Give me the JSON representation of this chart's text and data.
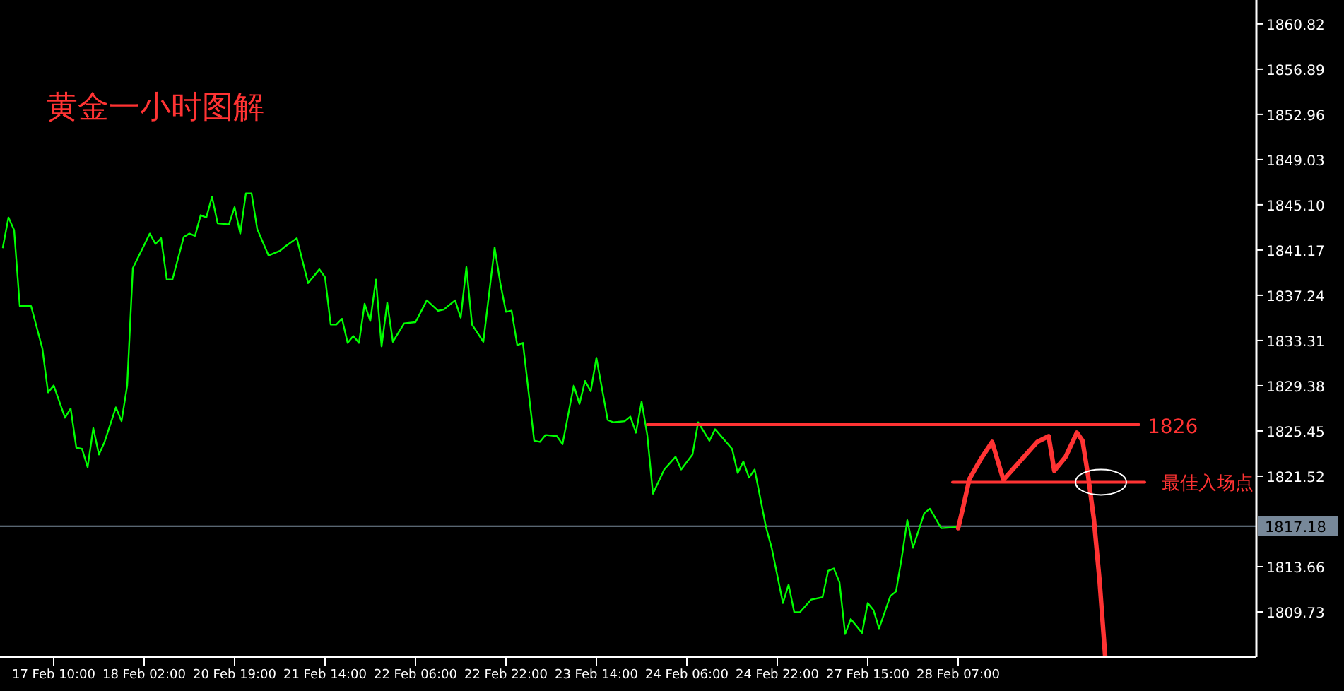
{
  "chart_data": {
    "type": "line",
    "title": "黄金一小时图解",
    "categories": [
      null,
      null,
      null,
      null,
      null,
      null,
      null,
      null,
      null,
      "17 Feb 10:00",
      null,
      null,
      null,
      null,
      null,
      null,
      null,
      null,
      null,
      null,
      null,
      null,
      null,
      null,
      null,
      "18 Feb 02:00",
      null,
      null,
      null,
      null,
      null,
      null,
      null,
      null,
      null,
      null,
      null,
      null,
      null,
      null,
      null,
      "20 Feb 19:00",
      null,
      null,
      null,
      null,
      null,
      null,
      null,
      null,
      null,
      null,
      null,
      null,
      null,
      null,
      null,
      "21 Feb 14:00",
      null,
      null,
      null,
      null,
      null,
      null,
      null,
      null,
      null,
      null,
      null,
      null,
      null,
      null,
      null,
      "22 Feb 06:00",
      null,
      null,
      null,
      null,
      null,
      null,
      null,
      null,
      null,
      null,
      null,
      null,
      null,
      null,
      null,
      "22 Feb 22:00",
      null,
      null,
      null,
      null,
      null,
      null,
      null,
      null,
      null,
      null,
      null,
      null,
      null,
      null,
      null,
      "23 Feb 14:00",
      null,
      null,
      null,
      null,
      null,
      null,
      null,
      null,
      null,
      null,
      null,
      null,
      null,
      null,
      null,
      "24 Feb 06:00",
      null,
      null,
      null,
      null,
      null,
      null,
      null,
      null,
      null,
      null,
      null,
      null,
      null,
      null,
      null,
      "24 Feb 22:00",
      null,
      null,
      null,
      null,
      null,
      null,
      null,
      null,
      null,
      null,
      null,
      null,
      null,
      null,
      null,
      "27 Feb 15:00",
      null,
      null,
      null,
      null,
      null,
      null,
      null,
      null,
      null,
      null,
      null,
      null,
      null,
      null,
      null,
      "28 Feb 07:00",
      null,
      null,
      null,
      null,
      null,
      null,
      null,
      null,
      null,
      null,
      null,
      null,
      null,
      null,
      null,
      null,
      null,
      null,
      null,
      null,
      null,
      null,
      null,
      null,
      null,
      null,
      null,
      null,
      null,
      null,
      null,
      null,
      null,
      null,
      null,
      null,
      null,
      null,
      null,
      null,
      null,
      null,
      null,
      null,
      null,
      null,
      null,
      null,
      null,
      null,
      null,
      null
    ],
    "ylim": [
      1805.8,
      1862.9
    ],
    "yticks": [
      {
        "value": 1860.82,
        "label": "1860.82"
      },
      {
        "value": 1856.89,
        "label": "1856.89"
      },
      {
        "value": 1852.96,
        "label": "1852.96"
      },
      {
        "value": 1849.03,
        "label": "1849.03"
      },
      {
        "value": 1845.1,
        "label": "1845.10"
      },
      {
        "value": 1841.17,
        "label": "1841.17"
      },
      {
        "value": 1837.24,
        "label": "1837.24"
      },
      {
        "value": 1833.31,
        "label": "1833.31"
      },
      {
        "value": 1829.38,
        "label": "1829.38"
      },
      {
        "value": 1825.45,
        "label": "1825.45"
      },
      {
        "value": 1821.52,
        "label": "1821.52"
      },
      {
        "value": 1813.66,
        "label": "1813.66"
      },
      {
        "value": 1809.73,
        "label": "1809.73"
      }
    ],
    "grid": false,
    "series": [
      {
        "color": "#00ff00",
        "values": [
          1841.4,
          1844.0,
          1842.9,
          1836.3,
          null,
          1836.3,
          null,
          1832.6,
          1828.8,
          1829.4,
          null,
          1826.6,
          1827.4,
          1824.0,
          1823.9,
          1822.3,
          1825.7,
          1823.4,
          1824.5,
          null,
          1827.5,
          1826.3,
          1829.4,
          1839.6,
          null,
          null,
          1842.6,
          1841.7,
          1842.2,
          1838.6,
          1838.6,
          null,
          1842.3,
          1842.6,
          1842.4,
          1844.2,
          1844.0,
          1845.8,
          1843.5,
          null,
          1843.4,
          1844.9,
          1842.6,
          1846.1,
          1846.1,
          1843.0,
          null,
          1840.7,
          null,
          1841.1,
          1841.5,
          null,
          1842.2,
          null,
          1838.3,
          null,
          1839.5,
          1838.8,
          1834.7,
          1834.7,
          1835.2,
          1833.1,
          1833.7,
          1833.1,
          1836.5,
          1835.0,
          1838.6,
          1832.8,
          1836.6,
          1833.2,
          null,
          1834.8,
          null,
          1834.9,
          null,
          1836.8,
          null,
          1835.9,
          1836.0,
          null,
          1836.8,
          1835.3,
          1839.7,
          1834.7,
          null,
          1833.2,
          null,
          1841.4,
          1838.3,
          1835.8,
          1835.9,
          1832.9,
          1833.1,
          null,
          1824.6,
          1824.5,
          1825.1,
          null,
          1825.0,
          1824.3,
          null,
          1829.4,
          1827.8,
          1829.8,
          1828.9,
          1831.8,
          null,
          1826.4,
          1826.2,
          null,
          1826.3,
          1826.7,
          1825.3,
          1828.0,
          1825.1,
          1820.0,
          null,
          1822.1,
          null,
          1823.2,
          1822.1,
          null,
          1823.4,
          1826.2,
          null,
          1824.6,
          1825.6,
          null,
          null,
          1823.9,
          1821.8,
          1822.8,
          1821.4,
          1822.1,
          null,
          1817.1,
          1815.3,
          null,
          1810.5,
          1812.1,
          1809.7,
          1809.7,
          null,
          1810.8,
          null,
          1811.0,
          1813.3,
          1813.5,
          1812.3,
          1807.8,
          1809.1,
          null,
          1807.9,
          1810.5,
          1809.9,
          1808.3,
          null,
          1811.1,
          1811.5,
          1814.4,
          1817.7,
          1815.3,
          null,
          1818.3,
          1818.7,
          null,
          1817.0,
          null,
          null,
          1817.1,
          null,
          null,
          null,
          null,
          null,
          null,
          null,
          null,
          null,
          null,
          null,
          null,
          null,
          null,
          null,
          null,
          null,
          null,
          null,
          null,
          null,
          null,
          null,
          null,
          null,
          null,
          null,
          null,
          null,
          null,
          null,
          null,
          null,
          null,
          null,
          null,
          null,
          null,
          null,
          null,
          null,
          null,
          null,
          null,
          null,
          null,
          null,
          null,
          null,
          null,
          null,
          null
        ]
      },
      {
        "color": "#ff3333",
        "values": [
          null,
          null,
          null,
          null,
          null,
          null,
          null,
          null,
          null,
          null,
          null,
          null,
          null,
          null,
          null,
          null,
          null,
          null,
          null,
          null,
          null,
          null,
          null,
          null,
          null,
          null,
          null,
          null,
          null,
          null,
          null,
          null,
          null,
          null,
          null,
          null,
          null,
          null,
          null,
          null,
          null,
          null,
          null,
          null,
          null,
          null,
          null,
          null,
          null,
          null,
          null,
          null,
          null,
          null,
          null,
          null,
          null,
          null,
          null,
          null,
          null,
          null,
          null,
          null,
          null,
          null,
          null,
          null,
          null,
          null,
          null,
          null,
          null,
          null,
          null,
          null,
          null,
          null,
          null,
          null,
          null,
          null,
          null,
          null,
          null,
          null,
          null,
          null,
          null,
          null,
          null,
          null,
          null,
          null,
          null,
          null,
          null,
          null,
          null,
          null,
          null,
          null,
          null,
          null,
          null,
          null,
          null,
          null,
          null,
          null,
          null,
          null,
          null,
          null,
          null,
          null,
          null,
          null,
          null,
          null,
          null,
          null,
          null,
          null,
          null,
          null,
          null,
          null,
          null,
          null,
          null,
          null,
          null,
          null,
          null,
          null,
          null,
          null,
          null,
          null,
          null,
          null,
          null,
          null,
          null,
          null,
          null,
          null,
          null,
          null,
          null,
          null,
          null,
          null,
          null,
          null,
          null,
          null,
          null,
          null,
          null,
          null,
          null,
          null,
          null,
          null,
          null,
          null,
          null,
          1817.0,
          1819.1,
          1821.3,
          null,
          1823.0,
          null,
          1824.5,
          null,
          1821.2,
          null,
          null,
          null,
          null,
          null,
          1824.5,
          null,
          1825.0,
          1822.0,
          null,
          1823.2,
          null,
          1825.3,
          1824.6,
          1821.5,
          1817.8,
          1812.5,
          1805.9,
          null,
          null,
          null,
          null,
          null,
          null,
          null,
          null,
          null,
          null,
          null,
          null,
          null,
          null,
          null,
          null,
          null,
          null,
          null,
          null,
          null,
          null,
          null,
          null,
          null,
          null
        ]
      },
      {
        "type": "line",
        "color": "#ff3333",
        "values": [
          null,
          null,
          null,
          null,
          null,
          null,
          null,
          null,
          null,
          null,
          null,
          null,
          null,
          null,
          null,
          null,
          null,
          null,
          null,
          null,
          null,
          null,
          null,
          null,
          null,
          null,
          null,
          null,
          null,
          null,
          null,
          null,
          null,
          null,
          null,
          null,
          null,
          null,
          null,
          null,
          null,
          null,
          null,
          null,
          null,
          null,
          null,
          null,
          null,
          null,
          null,
          null,
          null,
          null,
          null,
          null,
          null,
          null,
          null,
          null,
          null,
          null,
          null,
          null,
          null,
          null,
          null,
          null,
          null,
          null,
          null,
          null,
          null,
          null,
          null,
          null,
          null,
          null,
          null,
          null,
          null,
          null,
          null,
          null,
          null,
          null,
          null,
          null,
          null,
          null,
          null,
          null,
          null,
          null,
          null,
          null,
          null,
          null,
          null,
          null,
          null,
          null,
          null,
          null,
          null,
          null,
          null,
          null,
          null,
          null,
          null,
          null,
          null,
          null,
          1826,
          null,
          null,
          null,
          null,
          null,
          null,
          null,
          null,
          null,
          null,
          null,
          null,
          null,
          null,
          null,
          null,
          null,
          null,
          null,
          null,
          null,
          null,
          null,
          null,
          null,
          null,
          null,
          null,
          null,
          null,
          null,
          null,
          null,
          null,
          null,
          null,
          null,
          null,
          null,
          null,
          null,
          null,
          null,
          null,
          null,
          null,
          null,
          null,
          null,
          null,
          null,
          null,
          null,
          null,
          null,
          null,
          null,
          null,
          null,
          null,
          null,
          null,
          null,
          null,
          null,
          null,
          null,
          null,
          null,
          null,
          null,
          null,
          null,
          null,
          null,
          null,
          null,
          null,
          null,
          null,
          null,
          null,
          null,
          null,
          null,
          null,
          1826,
          null,
          null,
          null,
          null,
          null,
          null,
          null,
          null,
          null,
          null,
          null,
          null,
          null,
          null,
          null,
          null,
          null,
          null,
          null,
          null
        ]
      },
      {
        "type": "line",
        "color": "#ff3333",
        "values": [
          null,
          null,
          null,
          null,
          null,
          null,
          null,
          null,
          null,
          null,
          null,
          null,
          null,
          null,
          null,
          null,
          null,
          null,
          null,
          null,
          null,
          null,
          null,
          null,
          null,
          null,
          null,
          null,
          null,
          null,
          null,
          null,
          null,
          null,
          null,
          null,
          null,
          null,
          null,
          null,
          null,
          null,
          null,
          null,
          null,
          null,
          null,
          null,
          null,
          null,
          null,
          null,
          null,
          null,
          null,
          null,
          null,
          null,
          null,
          null,
          null,
          null,
          null,
          null,
          null,
          null,
          null,
          null,
          null,
          null,
          null,
          null,
          null,
          null,
          null,
          null,
          null,
          null,
          null,
          null,
          null,
          null,
          null,
          null,
          null,
          null,
          null,
          null,
          null,
          null,
          null,
          null,
          null,
          null,
          null,
          null,
          null,
          null,
          null,
          null,
          null,
          null,
          null,
          null,
          null,
          null,
          null,
          null,
          null,
          null,
          null,
          null,
          null,
          null,
          null,
          null,
          null,
          null,
          null,
          null,
          null,
          null,
          null,
          null,
          null,
          null,
          null,
          null,
          null,
          null,
          null,
          null,
          null,
          null,
          null,
          null,
          null,
          null,
          null,
          null,
          null,
          null,
          null,
          null,
          null,
          null,
          null,
          null,
          null,
          null,
          null,
          null,
          null,
          null,
          null,
          null,
          null,
          null,
          null,
          null,
          null,
          null,
          null,
          null,
          null,
          null,
          null,
          null,
          1821.0,
          null,
          null,
          null,
          null,
          null,
          null,
          null,
          null,
          null,
          null,
          null,
          null,
          null,
          null,
          null,
          null,
          null,
          null,
          null,
          null,
          null,
          null,
          null,
          null,
          null,
          null,
          null,
          null,
          null,
          null,
          null,
          null,
          null,
          1821.0,
          null,
          null,
          null,
          null,
          null,
          null,
          null,
          null,
          null,
          null,
          null,
          null,
          null,
          null,
          null,
          null,
          null,
          null,
          null
        ]
      }
    ],
    "ref_lines": [
      {
        "axis": "y",
        "value": 1817.18,
        "label": "1817.18",
        "color": "#778899"
      }
    ],
    "annotations": [
      "1826",
      "最佳入场点"
    ]
  }
}
